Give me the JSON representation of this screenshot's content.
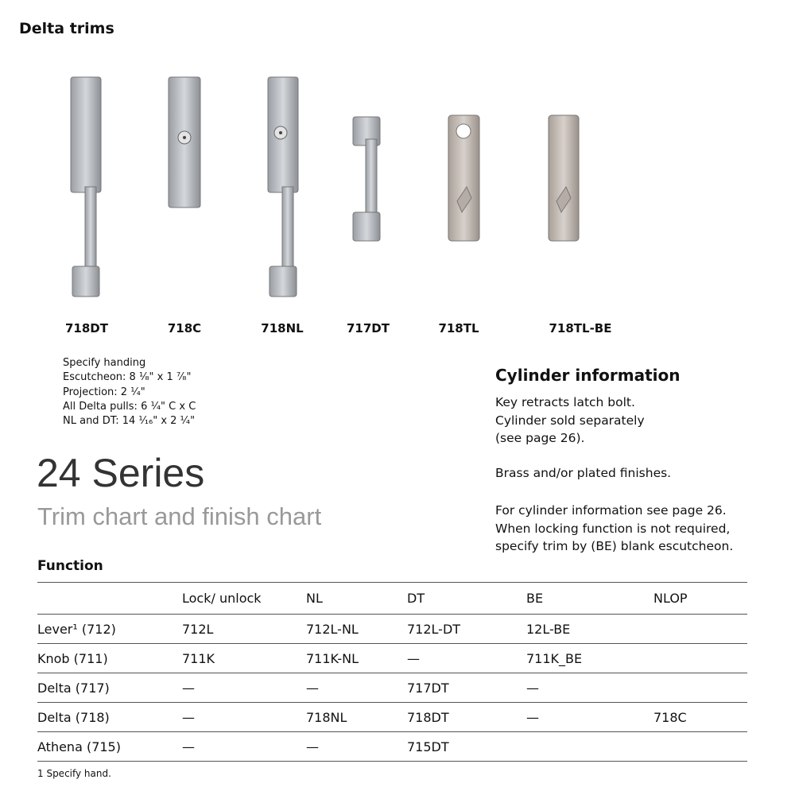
{
  "header": {
    "title": "Delta trims"
  },
  "products": [
    {
      "label": "718DT"
    },
    {
      "label": "718C"
    },
    {
      "label": "718NL"
    },
    {
      "label": "717DT"
    },
    {
      "label": "718TL"
    },
    {
      "label": "718TL-BE"
    }
  ],
  "specs": [
    "Specify handing",
    "Escutcheon: 8 ¹⁄₈\" x 1 ⁷⁄₈\"",
    "Projection: 2 ¹⁄₄\"",
    "All Delta pulls: 6 ¹⁄₄\" C x C",
    "NL and DT: 14 ¹⁄₁₆\" x 2 ¹⁄₄\""
  ],
  "cylinder": {
    "title": "Cylinder information",
    "p1": [
      "Key retracts latch bolt.",
      "Cylinder sold separately",
      "(see page 26)."
    ],
    "p2": "Brass and/or plated finishes.",
    "p3": [
      "For cylinder information see page 26.",
      "When locking function is not required,",
      "specify trim by (BE) blank escutcheon."
    ]
  },
  "series": {
    "title": "24 Series",
    "subtitle": "Trim chart and finish chart"
  },
  "table": {
    "caption": "Function",
    "headers": [
      "",
      "Lock/ unlock",
      "NL",
      "DT",
      "BE",
      "NLOP"
    ],
    "rows": [
      [
        "Lever¹ (712)",
        "712L",
        "712L-NL",
        "712L-DT",
        "12L-BE",
        ""
      ],
      [
        "Knob (711)",
        "711K",
        "711K-NL",
        "—",
        "711K_BE",
        ""
      ],
      [
        "Delta (717)",
        "—",
        "—",
        "717DT",
        "—",
        ""
      ],
      [
        "Delta (718)",
        "—",
        "718NL",
        "718DT",
        "—",
        "718C"
      ],
      [
        "Athena (715)",
        "—",
        "—",
        "715DT",
        "",
        ""
      ]
    ]
  },
  "footnote": "1 Specify hand."
}
